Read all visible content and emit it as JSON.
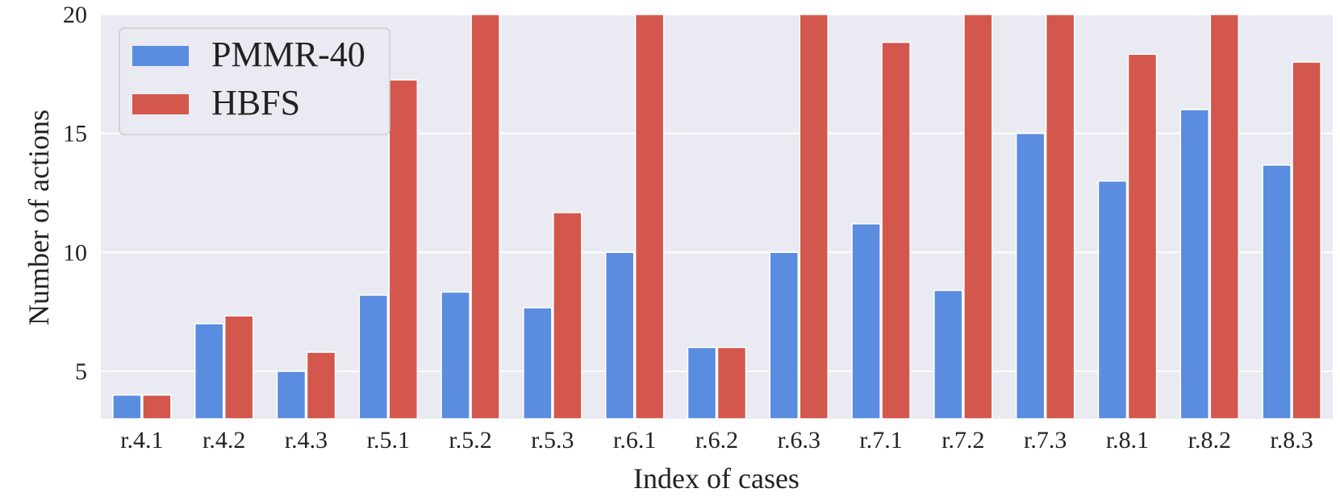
{
  "chart_data": {
    "type": "bar",
    "title": "",
    "xlabel": "Index of cases",
    "ylabel": "Number of actions",
    "ylim": [
      3,
      20
    ],
    "yticks": [
      5,
      10,
      15,
      20
    ],
    "grid": true,
    "legend_position": "top-left",
    "categories": [
      "r.4.1",
      "r.4.2",
      "r.4.3",
      "r.5.1",
      "r.5.2",
      "r.5.3",
      "r.6.1",
      "r.6.2",
      "r.6.3",
      "r.7.1",
      "r.7.2",
      "r.7.3",
      "r.8.1",
      "r.8.2",
      "r.8.3"
    ],
    "series": [
      {
        "name": "PMMR-40",
        "color": "#5a8ce0",
        "values": [
          4,
          7,
          5,
          8.2,
          8.33,
          7.67,
          10,
          6,
          10,
          11.2,
          8.4,
          15,
          13,
          16,
          13.67
        ]
      },
      {
        "name": "HBFS",
        "color": "#d3574c",
        "values": [
          4,
          7.33,
          5.8,
          17.25,
          20,
          11.67,
          20,
          6,
          20,
          18.83,
          20,
          20,
          18.33,
          20,
          18
        ]
      }
    ]
  }
}
